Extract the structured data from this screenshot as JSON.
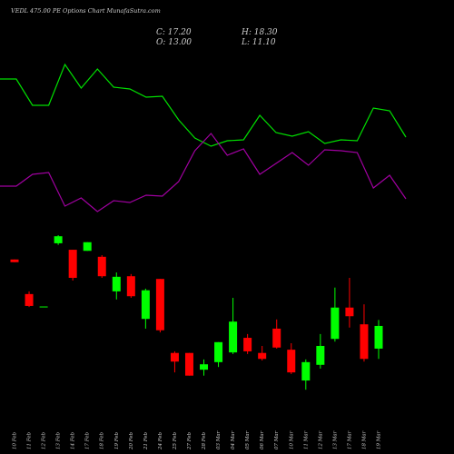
{
  "chart_data": {
    "type": "candlestick",
    "title": "VEDL 475.00 PE Options  Chart MunafaSutra.com",
    "info": [
      "C: 17.20",
      "H: 18.30",
      "O: 13.00",
      "L: 11.10"
    ],
    "categories": [
      "10 Feb",
      "11 Feb",
      "12 Feb",
      "13 Feb",
      "14 Feb",
      "17 Feb",
      "18 Feb",
      "19 Feb",
      "20 Feb",
      "21 Feb",
      "24 Feb",
      "25 Feb",
      "27 Feb",
      "28 Feb",
      "03 Mar",
      "04 Mar",
      "05 Mar",
      "06 Mar",
      "07 Mar",
      "10 Mar",
      "11 Mar",
      "12 Mar",
      "13 Mar",
      "17 Mar",
      "18 Mar",
      "19 Mar"
    ],
    "open": [
      29.5,
      23.1,
      20.8,
      32.5,
      31.3,
      31.1,
      30.0,
      23.6,
      26.4,
      18.5,
      25.9,
      12.2,
      12.2,
      9.1,
      10.5,
      12.3,
      15.0,
      12.2,
      16.7,
      12.8,
      7.1,
      10.0,
      14.8,
      20.6,
      17.5,
      13.0
    ],
    "close": [
      29.0,
      20.9,
      20.8,
      33.8,
      26.1,
      32.7,
      26.4,
      26.3,
      22.7,
      23.8,
      16.4,
      10.6,
      8.0,
      10.1,
      14.2,
      18.0,
      12.5,
      11.1,
      13.2,
      8.6,
      10.5,
      13.5,
      20.6,
      19.0,
      11.1,
      17.2
    ],
    "high": [
      29.5,
      23.6,
      20.8,
      34.0,
      31.3,
      32.7,
      30.3,
      27.1,
      26.8,
      24.1,
      25.9,
      12.5,
      12.2,
      11.0,
      14.2,
      22.4,
      15.7,
      13.5,
      18.4,
      14.0,
      11.0,
      15.7,
      24.3,
      26.1,
      21.2,
      18.3
    ],
    "low": [
      29.0,
      20.7,
      20.8,
      32.2,
      25.6,
      31.1,
      26.1,
      22.1,
      22.4,
      16.7,
      16.0,
      8.6,
      8.0,
      8.0,
      9.6,
      12.0,
      12.0,
      10.8,
      13.0,
      8.3,
      5.4,
      9.3,
      14.3,
      16.9,
      10.6,
      11.1
    ],
    "up_color": "#00ff00",
    "down_color": "#ff0000",
    "ylim": [
      4,
      34
    ],
    "overlays": [
      {
        "color": "#00e000",
        "values": [
          81.5,
          81.5,
          67,
          67,
          89.5,
          76.5,
          87,
          77,
          76,
          71.5,
          72,
          59,
          49,
          44.5,
          47.5,
          48,
          61.5,
          52,
          50,
          52.5,
          46,
          48,
          47.5,
          65.5,
          64,
          49.5
        ]
      },
      {
        "color": "#a000a0",
        "values": [
          22.5,
          22.5,
          29,
          30,
          11.5,
          16,
          8.5,
          14.5,
          13.5,
          17.5,
          17,
          25,
          42,
          51.5,
          39.5,
          43,
          29,
          35,
          41,
          34,
          42.5,
          42,
          41,
          21.5,
          28.5,
          15.5
        ]
      }
    ],
    "overlay_ylim": [
      0,
      100
    ]
  }
}
